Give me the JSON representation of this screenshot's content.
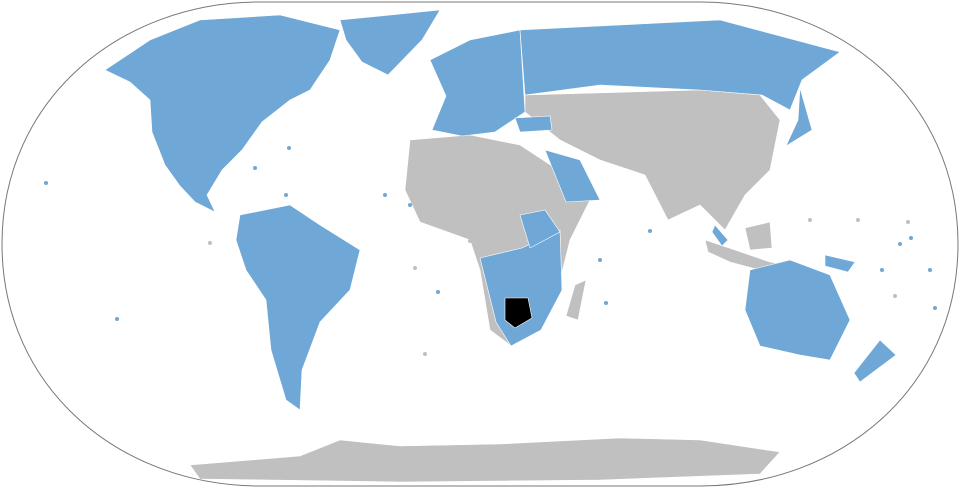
{
  "map": {
    "colors": {
      "background": "#ffffff",
      "outline": "#777777",
      "member": "#6fa8d6",
      "non_member": "#c0c0c0",
      "highlight": "#000000"
    }
  }
}
